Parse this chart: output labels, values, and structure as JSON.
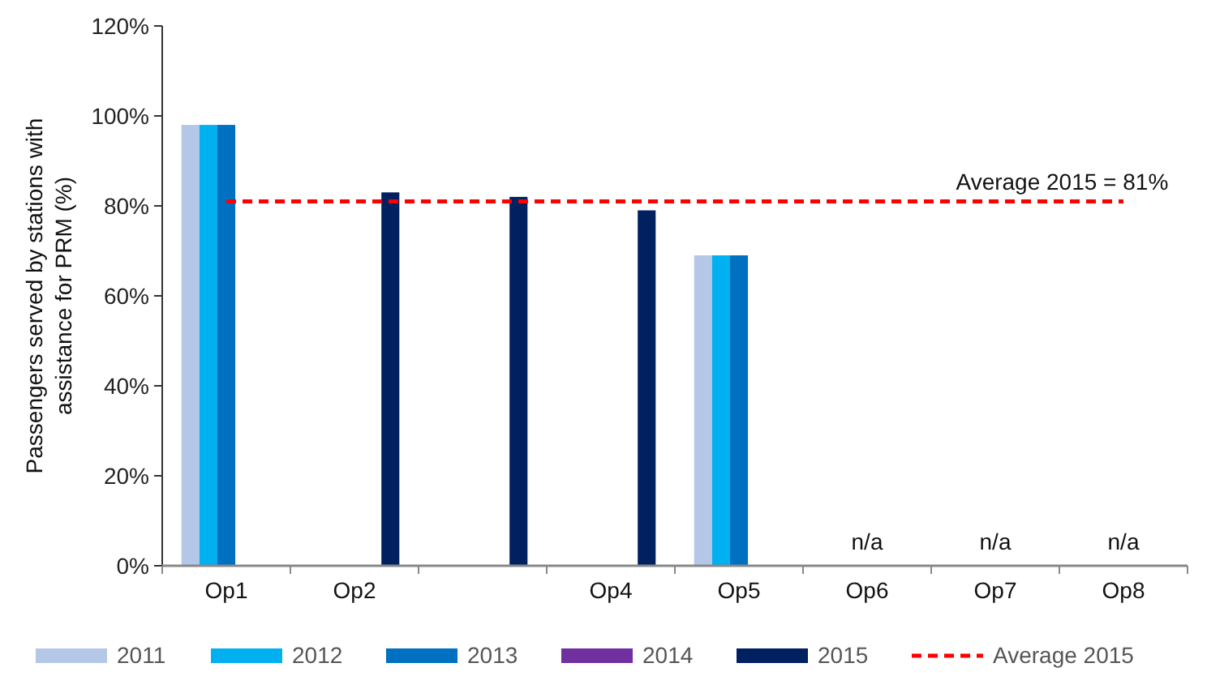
{
  "chart_data": {
    "type": "bar",
    "ylabel": "Passengers served by stations with assistance for PRM (%)",
    "categories": [
      "Op1",
      "Op2",
      null,
      "Op4",
      "Op5",
      "Op6",
      "Op7",
      "Op8"
    ],
    "series": [
      {
        "name": "2011",
        "color": "#b4c7e7",
        "values": [
          98,
          null,
          null,
          null,
          69,
          null,
          null,
          null
        ]
      },
      {
        "name": "2012",
        "color": "#00b0f0",
        "values": [
          98,
          null,
          null,
          null,
          69,
          null,
          null,
          null
        ]
      },
      {
        "name": "2013",
        "color": "#0070c0",
        "values": [
          98,
          null,
          null,
          null,
          69,
          null,
          null,
          null
        ]
      },
      {
        "name": "2014",
        "color": "#7030a0",
        "values": [
          null,
          null,
          null,
          null,
          null,
          null,
          null,
          null
        ]
      },
      {
        "name": "2015",
        "color": "#002060",
        "values": [
          null,
          83,
          82,
          79,
          null,
          null,
          null,
          null
        ]
      },
      {
        "name": "Average 2015",
        "type": "line",
        "color": "#ff0000",
        "line_style": "dashed",
        "values": [
          81,
          81,
          81,
          81,
          81,
          81,
          81,
          81
        ]
      }
    ],
    "ylim": [
      0,
      120
    ],
    "yticks": [
      {
        "value": 0,
        "label": "0%"
      },
      {
        "value": 20,
        "label": "20%"
      },
      {
        "value": 40,
        "label": "40%"
      },
      {
        "value": 60,
        "label": "60%"
      },
      {
        "value": 80,
        "label": "80%"
      },
      {
        "value": 100,
        "label": "100%"
      },
      {
        "value": 120,
        "label": "120%"
      }
    ],
    "annotations": [
      {
        "text": "Average 2015 = 81%",
        "x": "Op8",
        "y": 81
      },
      "n/a",
      "n/a",
      "n/a"
    ],
    "legend": "bottom",
    "grid": false
  }
}
